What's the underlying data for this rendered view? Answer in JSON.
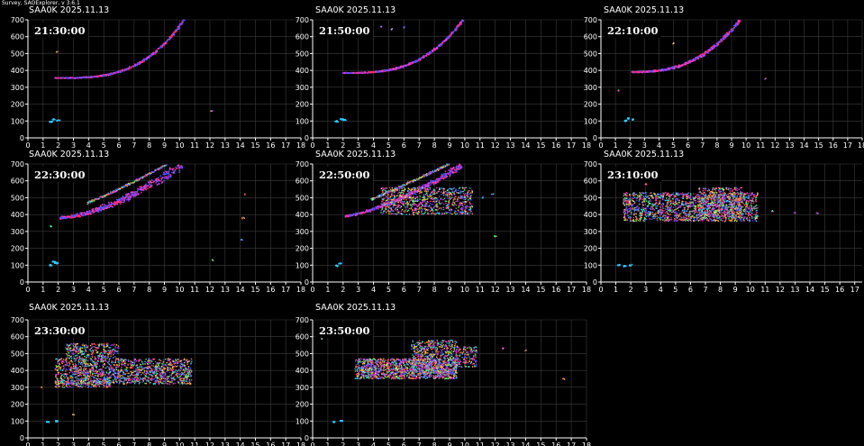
{
  "window": {
    "title": "Survey, SAOExplorer, v 3.6.1"
  },
  "colors": {
    "background": "#000000",
    "axes": "#ffffff",
    "grid": "#3c3c3c",
    "traces": [
      "#ff2a6d",
      "#ff3bd0",
      "#7a3cff",
      "#3f5bff",
      "#2ec8ff",
      "#36ff7a",
      "#ffe23a",
      "#ff8a2a"
    ]
  },
  "chart_data": [
    {
      "type": "scatter",
      "title": "SAA0K 2025.11.13",
      "time": "21:30:00",
      "xlim": [
        0,
        18
      ],
      "ylim": [
        0,
        700
      ],
      "xticks": [
        "0",
        "1",
        "2",
        "3",
        "4",
        "5",
        "6",
        "7",
        "8",
        "9",
        "10",
        "11",
        "12",
        "13",
        "14",
        "15",
        "16",
        "17",
        "18"
      ],
      "yticks": [
        "0",
        "100",
        "200",
        "300",
        "400",
        "500",
        "600",
        "700"
      ],
      "trace_start": [
        1.8,
        355
      ],
      "trace_end": [
        10.3,
        700
      ],
      "trace_curve": 3.2,
      "trace_thickness": 10,
      "spread": 0,
      "low": [
        [
          1.5,
          95
        ],
        [
          2.0,
          105
        ],
        [
          1.7,
          110
        ]
      ],
      "extras": [
        [
          1.9,
          510
        ],
        [
          12.1,
          160
        ]
      ]
    },
    {
      "type": "scatter",
      "title": "SAA0K 2025.11.13",
      "time": "21:50:00",
      "xlim": [
        0,
        18
      ],
      "ylim": [
        0,
        700
      ],
      "xticks": [
        "0",
        "1",
        "2",
        "3",
        "4",
        "5",
        "6",
        "7",
        "8",
        "9",
        "10",
        "11",
        "12",
        "13",
        "14",
        "15",
        "16",
        "17",
        "18"
      ],
      "yticks": [
        "0",
        "100",
        "200",
        "300",
        "400",
        "500",
        "600",
        "700"
      ],
      "trace_start": [
        2.0,
        385
      ],
      "trace_end": [
        9.9,
        700
      ],
      "trace_curve": 3.0,
      "trace_thickness": 10,
      "spread": 0,
      "low": [
        [
          1.6,
          98
        ],
        [
          2.1,
          105
        ],
        [
          1.9,
          112
        ]
      ],
      "extras": [
        [
          3.7,
          650
        ],
        [
          4.5,
          660
        ],
        [
          5.2,
          645
        ],
        [
          6.0,
          655
        ]
      ]
    },
    {
      "type": "scatter",
      "title": "SAA0K 2025.11.13",
      "time": "22:10:00",
      "xlim": [
        0,
        18
      ],
      "ylim": [
        0,
        700
      ],
      "xticks": [
        "0",
        "1",
        "2",
        "3",
        "4",
        "5",
        "6",
        "7",
        "8",
        "9",
        "10",
        "11",
        "12",
        "13",
        "14",
        "15",
        "16",
        "17",
        "18"
      ],
      "yticks": [
        "0",
        "100",
        "200",
        "300",
        "400",
        "500",
        "600",
        "700"
      ],
      "trace_start": [
        2.1,
        390
      ],
      "trace_end": [
        9.6,
        700
      ],
      "trace_curve": 2.6,
      "trace_thickness": 16,
      "spread": 0,
      "low": [
        [
          1.7,
          100
        ],
        [
          2.2,
          108
        ],
        [
          1.9,
          115
        ]
      ],
      "extras": [
        [
          1.2,
          280
        ],
        [
          11.3,
          350
        ],
        [
          5.0,
          560
        ]
      ]
    },
    {
      "type": "scatter",
      "title": "SAA0K 2025.11.13",
      "time": "22:30:00",
      "xlim": [
        0,
        18
      ],
      "ylim": [
        0,
        700
      ],
      "xticks": [
        "0",
        "1",
        "2",
        "3",
        "4",
        "5",
        "6",
        "7",
        "8",
        "9",
        "10",
        "11",
        "12",
        "13",
        "14",
        "15",
        "16",
        "17",
        "18"
      ],
      "yticks": [
        "0",
        "100",
        "200",
        "300",
        "400",
        "500",
        "600",
        "700"
      ],
      "trace_start": [
        2.1,
        380
      ],
      "trace_end": [
        10.2,
        700
      ],
      "trace_curve": 1.6,
      "trace_thickness": 40,
      "spread": 0,
      "low": [
        [
          1.5,
          100
        ],
        [
          1.9,
          112
        ],
        [
          1.7,
          120
        ]
      ],
      "extras": [
        [
          14.2,
          380
        ],
        [
          14.3,
          520
        ],
        [
          14.1,
          250
        ],
        [
          12.2,
          130
        ],
        [
          1.5,
          330
        ]
      ]
    },
    {
      "type": "scatter",
      "title": "SAA0K 2025.11.13",
      "time": "22:50:00",
      "xlim": [
        0,
        18
      ],
      "ylim": [
        0,
        700
      ],
      "xticks": [
        "0",
        "1",
        "2",
        "3",
        "4",
        "5",
        "6",
        "7",
        "8",
        "9",
        "10",
        "11",
        "12",
        "13",
        "14",
        "15",
        "16",
        "17",
        "18"
      ],
      "yticks": [
        "0",
        "100",
        "200",
        "300",
        "400",
        "500",
        "600",
        "700"
      ],
      "trace_start": [
        2.1,
        390
      ],
      "trace_end": [
        9.8,
        690
      ],
      "trace_curve": 1.4,
      "trace_thickness": 26,
      "spread": 0,
      "cloud": [
        [
          4.5,
          10.5,
          400,
          560,
          900
        ]
      ],
      "low": [
        [
          1.6,
          95
        ],
        [
          1.8,
          110
        ]
      ],
      "extras": [
        [
          11.2,
          500
        ],
        [
          12.0,
          270
        ],
        [
          11.8,
          520
        ]
      ]
    },
    {
      "type": "scatter",
      "title": "SAA0K 2025.11.13",
      "time": "23:10:00",
      "xlim": [
        0,
        17.5
      ],
      "ylim": [
        0,
        700
      ],
      "xticks": [
        "0",
        "1",
        "2",
        "3",
        "4",
        "5",
        "6",
        "7",
        "8",
        "9",
        "10",
        "11",
        "12",
        "13",
        "14",
        "15",
        "16",
        "17"
      ],
      "yticks": [
        "0",
        "100",
        "200",
        "300",
        "400",
        "500",
        "600",
        "700"
      ],
      "cloud": [
        [
          1.5,
          10.5,
          360,
          530,
          1600
        ],
        [
          6.5,
          9.5,
          380,
          560,
          500
        ]
      ],
      "low": [
        [
          1.2,
          100
        ],
        [
          1.6,
          95
        ],
        [
          2.0,
          100
        ]
      ],
      "extras": [
        [
          11.5,
          420
        ],
        [
          13.0,
          410
        ],
        [
          14.5,
          405
        ],
        [
          3.0,
          580
        ]
      ]
    },
    {
      "type": "scatter",
      "title": "SAA0K 2025.11.13",
      "time": "23:30:00",
      "xlim": [
        0,
        18
      ],
      "ylim": [
        0,
        700
      ],
      "xticks": [
        "0",
        "1",
        "2",
        "3",
        "4",
        "5",
        "6",
        "7",
        "8",
        "9",
        "10",
        "11",
        "12",
        "13",
        "14",
        "15",
        "16",
        "17",
        "18"
      ],
      "yticks": [
        "0",
        "100",
        "200",
        "300",
        "400",
        "500",
        "600",
        "700"
      ],
      "cloud": [
        [
          1.8,
          10.8,
          320,
          470,
          1500
        ],
        [
          2.5,
          6.0,
          470,
          560,
          300
        ],
        [
          1.8,
          5.5,
          300,
          340,
          200
        ]
      ],
      "low": [
        [
          1.3,
          95
        ],
        [
          1.9,
          100
        ]
      ],
      "extras": [
        [
          0.9,
          300
        ],
        [
          1.5,
          610
        ],
        [
          3.0,
          140
        ]
      ]
    },
    {
      "type": "scatter",
      "title": "SAA0K 2025.11.13",
      "time": "23:50:00",
      "xlim": [
        0,
        18
      ],
      "ylim": [
        0,
        700
      ],
      "xticks": [
        "0",
        "1",
        "2",
        "3",
        "4",
        "5",
        "6",
        "7",
        "8",
        "9",
        "10",
        "11",
        "12",
        "13",
        "14",
        "15",
        "16",
        "17",
        "18"
      ],
      "yticks": [
        "0",
        "100",
        "200",
        "300",
        "400",
        "500",
        "600",
        "700"
      ],
      "cloud": [
        [
          2.8,
          9.5,
          350,
          470,
          1300
        ],
        [
          6.5,
          9.5,
          380,
          580,
          600
        ],
        [
          9.5,
          10.8,
          420,
          540,
          150
        ]
      ],
      "low": [
        [
          1.4,
          95
        ],
        [
          1.9,
          100
        ]
      ],
      "extras": [
        [
          0.6,
          590
        ],
        [
          12.5,
          530
        ],
        [
          14.0,
          520
        ],
        [
          16.5,
          350
        ]
      ]
    }
  ]
}
